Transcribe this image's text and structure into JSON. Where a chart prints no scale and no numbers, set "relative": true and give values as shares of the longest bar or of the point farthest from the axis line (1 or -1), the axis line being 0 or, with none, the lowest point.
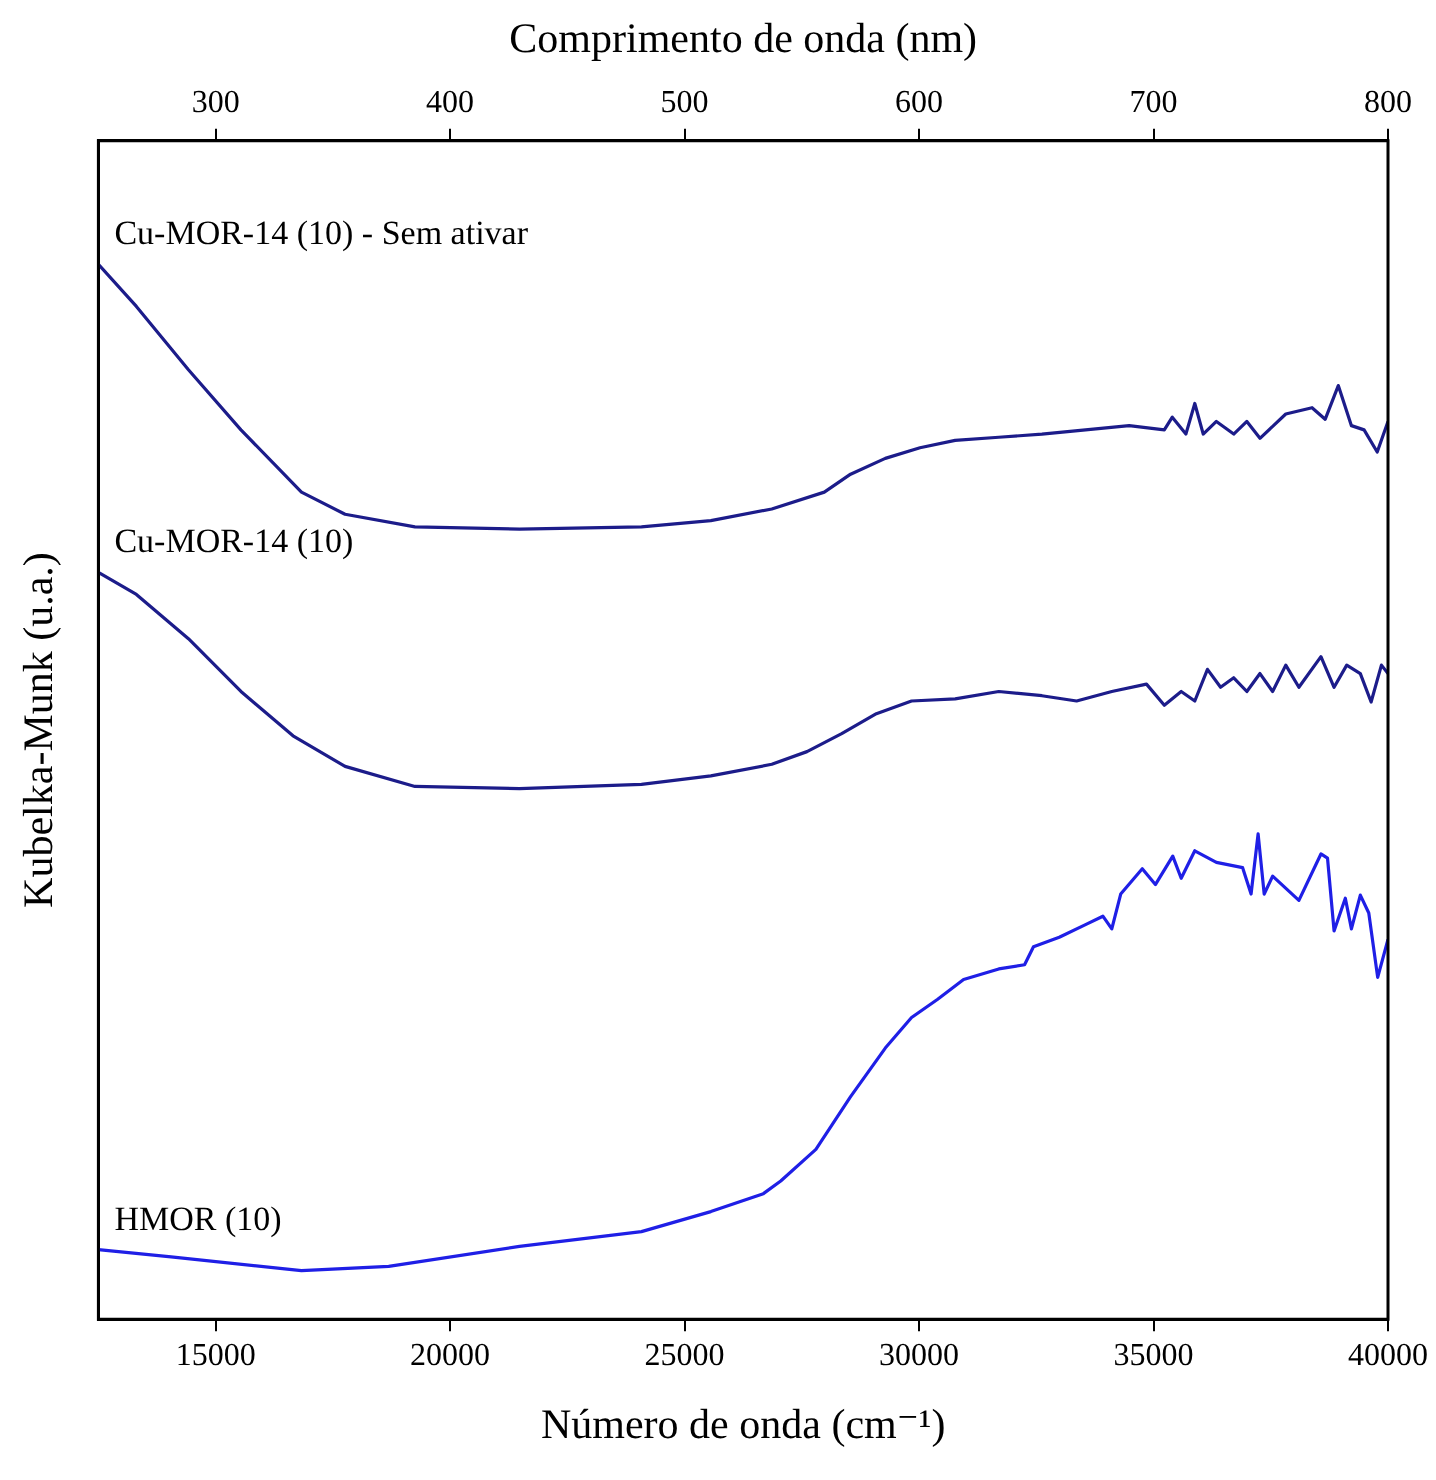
{
  "chart_data": {
    "type": "line",
    "xlabel": "Número de onda (cm⁻¹)",
    "ylabel": "Kubelka-Munk (u.a.)",
    "x2label": "Comprimento de onda (nm)",
    "xlim": [
      12500,
      40000
    ],
    "xticks": [
      15000,
      20000,
      25000,
      30000,
      35000,
      40000
    ],
    "x2lim": [
      250,
      800
    ],
    "x2ticks": [
      300,
      400,
      500,
      600,
      700,
      800
    ],
    "relative": true,
    "grid": false,
    "legend": false,
    "marker": "none",
    "line_style": "solid",
    "series": [
      {
        "name": "Cu-MOR-14 (10) - Sem ativar",
        "color": "#1c1c8a",
        "x": [
          12500,
          13310,
          14420,
          15540,
          16830,
          17760,
          19250,
          21480,
          24080,
          25560,
          26860,
          27980,
          28540,
          29280,
          30020,
          30770,
          31700,
          32620,
          33550,
          34480,
          35230,
          35400,
          35690,
          35880,
          36060,
          36340,
          36710,
          36990,
          37270,
          37820,
          38380,
          38660,
          38940,
          39220,
          39490,
          39770,
          40000
        ],
        "values": [
          1,
          0.96,
          0.9,
          0.843,
          0.784,
          0.763,
          0.751,
          0.749,
          0.751,
          0.757,
          0.768,
          0.784,
          0.801,
          0.816,
          0.826,
          0.833,
          0.836,
          0.839,
          0.843,
          0.847,
          0.843,
          0.855,
          0.839,
          0.868,
          0.839,
          0.851,
          0.839,
          0.851,
          0.835,
          0.858,
          0.864,
          0.853,
          0.885,
          0.847,
          0.843,
          0.822,
          0.851
        ]
      },
      {
        "name": "Cu-MOR-14 (10)",
        "color": "#1c1c8a",
        "x": [
          12500,
          13310,
          14420,
          15540,
          16650,
          17760,
          19250,
          21480,
          24080,
          25560,
          26860,
          27610,
          28350,
          29090,
          29840,
          30770,
          31700,
          32620,
          33360,
          34110,
          34850,
          35230,
          35590,
          35880,
          36150,
          36430,
          36710,
          36990,
          37270,
          37540,
          37820,
          38100,
          38570,
          38850,
          39120,
          39410,
          39640,
          39860,
          40000
        ],
        "values": [
          0.708,
          0.687,
          0.645,
          0.595,
          0.553,
          0.524,
          0.505,
          0.503,
          0.507,
          0.515,
          0.526,
          0.538,
          0.555,
          0.574,
          0.586,
          0.588,
          0.595,
          0.591,
          0.586,
          0.595,
          0.602,
          0.582,
          0.595,
          0.586,
          0.616,
          0.599,
          0.608,
          0.595,
          0.612,
          0.595,
          0.62,
          0.599,
          0.628,
          0.599,
          0.62,
          0.612,
          0.585,
          0.62,
          0.612
        ]
      },
      {
        "name": "HMOR (10)",
        "color": "#1f1fe6",
        "x": [
          12500,
          14050,
          16830,
          18690,
          21480,
          24080,
          25560,
          26680,
          27050,
          27800,
          28540,
          29280,
          29840,
          30390,
          30950,
          31700,
          32250,
          32440,
          32990,
          33550,
          33920,
          34110,
          34300,
          34760,
          35040,
          35410,
          35590,
          35880,
          36340,
          36900,
          37080,
          37230,
          37360,
          37540,
          38100,
          38570,
          38710,
          38850,
          39090,
          39220,
          39410,
          39590,
          39780,
          40000
        ],
        "values": [
          0.066,
          0.059,
          0.046,
          0.05,
          0.069,
          0.083,
          0.102,
          0.119,
          0.131,
          0.161,
          0.211,
          0.257,
          0.286,
          0.303,
          0.322,
          0.332,
          0.336,
          0.353,
          0.362,
          0.374,
          0.382,
          0.37,
          0.403,
          0.427,
          0.412,
          0.439,
          0.418,
          0.444,
          0.433,
          0.428,
          0.403,
          0.46,
          0.403,
          0.42,
          0.397,
          0.441,
          0.437,
          0.368,
          0.399,
          0.37,
          0.402,
          0.385,
          0.324,
          0.36
        ]
      }
    ]
  }
}
